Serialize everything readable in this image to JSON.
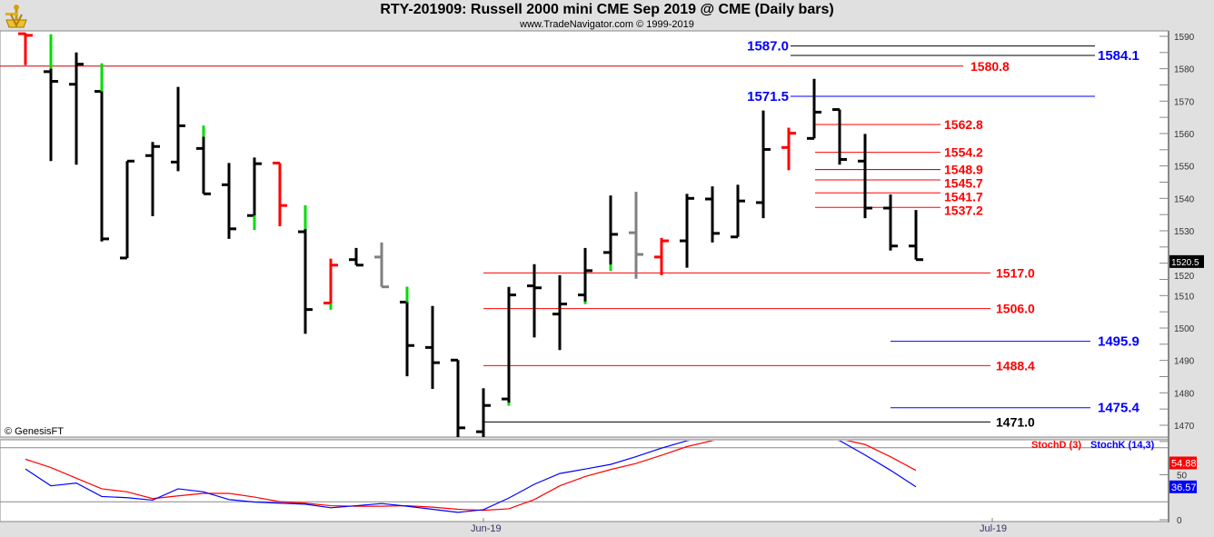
{
  "header": {
    "title": "RTY-201909:  Russell 2000 mini CME Sep 2019 @ CME  (Daily bars)",
    "subtitle": "www.TradeNavigator.com © 1999-2019",
    "logo_icon": "sextant-logo-icon"
  },
  "watermark": "© GenesisFT",
  "colors": {
    "up": "#000000",
    "down": "#ff0000",
    "neutral": "#808080",
    "accent": "#00dd00",
    "stochD": "#ff0000",
    "stochK": "#0000ff",
    "blue_label": "#0000ff",
    "red_label": "#ff0000"
  },
  "chart_data": [
    {
      "type": "ohlc",
      "title": "RTY-201909: Russell 2000 mini CME Sep 2019 @ CME (Daily bars)",
      "ylim": [
        1466,
        1591
      ],
      "y_ticks": [
        1470,
        1480,
        1490,
        1500,
        1510,
        1520,
        1530,
        1540,
        1550,
        1560,
        1570,
        1580,
        1590
      ],
      "x_tick_labels": [
        {
          "label": "Jun-19",
          "index": 18
        },
        {
          "label": "Jul-19",
          "index": 38
        }
      ],
      "last_price": "1520.5",
      "bars": [
        {
          "o": 1590.8,
          "h": 1591,
          "l": 1581.1,
          "c": 1590.3,
          "color": "down"
        },
        {
          "o": 1579.1,
          "h": 1590.6,
          "l": 1551.5,
          "c": 1576.1,
          "color": "up",
          "green": [
            1580,
            1590.6
          ]
        },
        {
          "o": 1575.2,
          "h": 1585,
          "l": 1550.4,
          "c": 1581.4,
          "color": "up"
        },
        {
          "o": 1573,
          "h": 1581.6,
          "l": 1526.7,
          "c": 1527.5,
          "color": "up",
          "green": [
            1573,
            1581.6
          ]
        },
        {
          "o": 1521.6,
          "h": 1551.5,
          "l": 1521.6,
          "c": 1551.5,
          "color": "up"
        },
        {
          "o": 1553.2,
          "h": 1557.4,
          "l": 1534.5,
          "c": 1556,
          "color": "up"
        },
        {
          "o": 1551.2,
          "h": 1574.4,
          "l": 1548.4,
          "c": 1562.4,
          "color": "up"
        },
        {
          "o": 1555.4,
          "h": 1562.4,
          "l": 1541.4,
          "c": 1541.4,
          "color": "up",
          "green": [
            1559,
            1562.4
          ]
        },
        {
          "o": 1544.2,
          "h": 1550.9,
          "l": 1527.5,
          "c": 1530.6,
          "color": "up"
        },
        {
          "o": 1534.7,
          "h": 1552.6,
          "l": 1530.3,
          "c": 1550.7,
          "color": "up",
          "green": [
            1530.3,
            1534.7
          ]
        },
        {
          "o": 1550.9,
          "h": 1550.9,
          "l": 1531.4,
          "c": 1537.8,
          "color": "down"
        },
        {
          "o": 1529.7,
          "h": 1537.8,
          "l": 1498.2,
          "c": 1505.7,
          "color": "up",
          "green": [
            1530.5,
            1537.8
          ]
        },
        {
          "o": 1507.7,
          "h": 1521.4,
          "l": 1505.7,
          "c": 1519.4,
          "color": "down",
          "green": [
            1505.7,
            1507.5
          ]
        },
        {
          "o": 1521.1,
          "h": 1524.7,
          "l": 1519.4,
          "c": 1519.4,
          "color": "up"
        },
        {
          "o": 1521.9,
          "h": 1526.4,
          "l": 1512.7,
          "c": 1512.7,
          "color": "neutral"
        },
        {
          "o": 1508,
          "h": 1512.7,
          "l": 1485.1,
          "c": 1494.6,
          "color": "up",
          "green": [
            1508,
            1512.7
          ]
        },
        {
          "o": 1494,
          "h": 1506.8,
          "l": 1481.2,
          "c": 1489.3,
          "color": "up"
        },
        {
          "o": 1490.1,
          "h": 1490.1,
          "l": 1466,
          "c": 1469.2,
          "color": "up"
        },
        {
          "o": 1468,
          "h": 1481.4,
          "l": 1466,
          "c": 1476.1,
          "color": "up"
        },
        {
          "o": 1478.1,
          "h": 1512.7,
          "l": 1476.1,
          "c": 1510.2,
          "color": "up",
          "green": [
            1476.1,
            1477
          ]
        },
        {
          "o": 1513,
          "h": 1519.7,
          "l": 1497.1,
          "c": 1512.4,
          "color": "up"
        },
        {
          "o": 1504.3,
          "h": 1516.3,
          "l": 1493.2,
          "c": 1507.4,
          "color": "up"
        },
        {
          "o": 1510.2,
          "h": 1524.7,
          "l": 1507.4,
          "c": 1517.7,
          "color": "up",
          "green": [
            1507.4,
            1508.2
          ]
        },
        {
          "o": 1523.3,
          "h": 1540.9,
          "l": 1517.7,
          "c": 1528.9,
          "color": "up",
          "green": [
            1517.7,
            1519.6
          ]
        },
        {
          "o": 1529.4,
          "h": 1542,
          "l": 1515.2,
          "c": 1522.7,
          "color": "neutral"
        },
        {
          "o": 1521.9,
          "h": 1527.8,
          "l": 1516.3,
          "c": 1526.9,
          "color": "down"
        },
        {
          "o": 1526.9,
          "h": 1541.4,
          "l": 1518.6,
          "c": 1540,
          "color": "up"
        },
        {
          "o": 1539.8,
          "h": 1543.7,
          "l": 1526.4,
          "c": 1529.2,
          "color": "up"
        },
        {
          "o": 1528.1,
          "h": 1544.2,
          "l": 1528.1,
          "c": 1539.2,
          "color": "up"
        },
        {
          "o": 1538.7,
          "h": 1567.1,
          "l": 1533.9,
          "c": 1555.1,
          "color": "up"
        },
        {
          "o": 1555.7,
          "h": 1561.8,
          "l": 1548.7,
          "c": 1560.1,
          "color": "down"
        },
        {
          "o": 1558.5,
          "h": 1576.9,
          "l": 1558.5,
          "c": 1566.6,
          "color": "up"
        },
        {
          "o": 1567.4,
          "h": 1567.4,
          "l": 1550.4,
          "c": 1552,
          "color": "up"
        },
        {
          "o": 1551.5,
          "h": 1559.9,
          "l": 1533.9,
          "c": 1537,
          "color": "up"
        },
        {
          "o": 1537,
          "h": 1541.2,
          "l": 1523.9,
          "c": 1525.3,
          "color": "up"
        },
        {
          "o": 1525.3,
          "h": 1536.4,
          "l": 1521.1,
          "c": 1521.1,
          "color": "up"
        }
      ],
      "levels": [
        {
          "value": 1587.0,
          "label": "1587.0",
          "label_color": "#0000ff",
          "line_color": "#000000",
          "group": "top-left-label"
        },
        {
          "value": 1584.1,
          "label": "1584.1",
          "label_color": "#0000ff",
          "line_color": "#000000",
          "group": "top-right-label"
        },
        {
          "value": 1580.8,
          "label": "1580.8",
          "label_color": "#ff0000",
          "line_color": "#cc0000",
          "group": "full"
        },
        {
          "value": 1571.5,
          "label": "1571.5",
          "label_color": "#0000ff",
          "line_color": "#0000ff",
          "group": "top-left-label"
        },
        {
          "value": 1562.8,
          "label": "1562.8",
          "label_color": "#ff0000",
          "line_color": "#ff0000",
          "group": "short"
        },
        {
          "value": 1554.2,
          "label": "1554.2",
          "label_color": "#ff0000",
          "line_color": "#ff0000",
          "group": "short"
        },
        {
          "value": 1548.9,
          "label": "1548.9",
          "label_color": "#ff0000",
          "line_color": "#990000",
          "group": "short"
        },
        {
          "value": 1545.7,
          "label": "1545.7",
          "label_color": "#ff0000",
          "line_color": "#ff0000",
          "group": "short"
        },
        {
          "value": 1541.7,
          "label": "1541.7",
          "label_color": "#ff0000",
          "line_color": "#ff0000",
          "group": "short"
        },
        {
          "value": 1537.2,
          "label": "1537.2",
          "label_color": "#ff0000",
          "line_color": "#ff0000",
          "group": "short"
        },
        {
          "value": 1517.0,
          "label": "1517.0",
          "label_color": "#ff0000",
          "line_color": "#ff0000",
          "group": "mid"
        },
        {
          "value": 1506.0,
          "label": "1506.0",
          "label_color": "#ff0000",
          "line_color": "#ff0000",
          "group": "mid"
        },
        {
          "value": 1495.9,
          "label": "1495.9",
          "label_color": "#0000ff",
          "line_color": "#0000ff",
          "group": "right"
        },
        {
          "value": 1488.4,
          "label": "1488.4",
          "label_color": "#ff0000",
          "line_color": "#ff0000",
          "group": "mid"
        },
        {
          "value": 1475.4,
          "label": "1475.4",
          "label_color": "#0000ff",
          "line_color": "#0000ff",
          "group": "right"
        },
        {
          "value": 1471.0,
          "label": "1471.0",
          "label_color": "#000000",
          "line_color": "#000000",
          "group": "mid"
        }
      ]
    },
    {
      "type": "line",
      "title": "Stochastic",
      "ylim": [
        0,
        100
      ],
      "y_ticks": [
        {
          "value": 0,
          "label": "0"
        },
        {
          "value": 50,
          "label": "50"
        }
      ],
      "reference_lines": [
        20,
        80
      ],
      "series": [
        {
          "name": "StochD (3)",
          "color": "#ff0000",
          "last_label": "54.88",
          "values": [
            67.3,
            58,
            46.2,
            34.4,
            31,
            23.5,
            26.5,
            29.3,
            29.3,
            25.2,
            20.1,
            18.4,
            15.6,
            15,
            15,
            15.6,
            14,
            11.6,
            10.5,
            12.2,
            22.4,
            37.7,
            48,
            55.8,
            62.6,
            71.7,
            81.3,
            88,
            93,
            96,
            96,
            95,
            90,
            83.6,
            70,
            54.88
          ]
        },
        {
          "name": "StochK (14,3)",
          "color": "#0000ff",
          "last_label": "36.57",
          "values": [
            56.4,
            37.7,
            40.8,
            25.8,
            24.5,
            21.8,
            34.4,
            31,
            22.4,
            19.7,
            18.4,
            17.3,
            13.3,
            15.6,
            18,
            15,
            11.6,
            8.2,
            11.2,
            24.1,
            39.4,
            51.4,
            56.4,
            61.5,
            70.1,
            79.6,
            87.8,
            93,
            97,
            98,
            97,
            93,
            88,
            72,
            55,
            36.57
          ]
        }
      ]
    }
  ]
}
